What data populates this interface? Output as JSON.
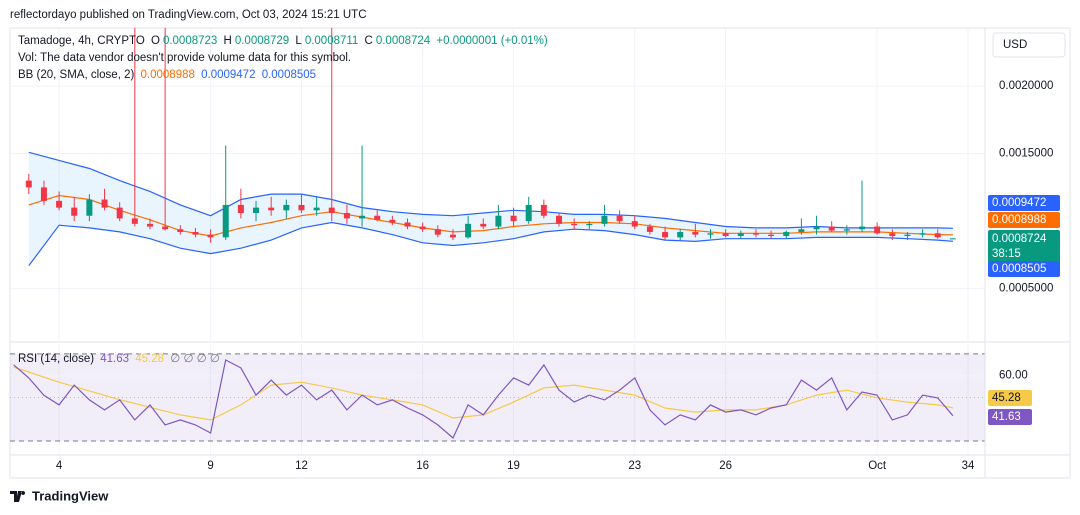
{
  "header": {
    "attribution": "reflectordayo published on TradingView.com, Oct 03, 2024 15:21 UTC",
    "brand": "TradingView"
  },
  "chart_data": [
    {
      "type": "candlestick",
      "symbol": "Tamadoge, 4h, CRYPTO",
      "ohlc_labels": [
        "O",
        "H",
        "L",
        "C"
      ],
      "change": "+0.0000001 (+0.01%)",
      "volume_note": "Vol: The data vendor doesn't provide volume data for this symbol.",
      "currency": "USD",
      "countdown": "38:15",
      "up_color": "#089981",
      "down_color": "#f23645",
      "grid": true,
      "xlim": [
        2.38,
        34.56
      ],
      "ylim": [
        0.00012,
        0.00243
      ],
      "xticks": [
        4,
        9,
        12,
        16,
        19,
        23,
        26,
        {
          "value": 31,
          "label": "Oct"
        },
        34
      ],
      "yticks": [
        {
          "value": 0.0005,
          "label": "0.0005000"
        },
        {
          "value": 0.0015,
          "label": "0.0015000"
        },
        {
          "value": 0.002,
          "label": "0.0020000"
        }
      ],
      "x": [
        3,
        3.5,
        4,
        4.5,
        5,
        5.5,
        6,
        6.5,
        7,
        7.5,
        8,
        8.5,
        9,
        9.5,
        10,
        10.5,
        11,
        11.5,
        12,
        12.5,
        13,
        13.5,
        14,
        14.5,
        15,
        15.5,
        16,
        16.5,
        17,
        17.5,
        18,
        18.5,
        19,
        19.5,
        20,
        20.5,
        21,
        21.5,
        22,
        22.5,
        23,
        23.5,
        24,
        24.5,
        25,
        25.5,
        26,
        26.5,
        27,
        27.5,
        28,
        28.5,
        29,
        29.5,
        30,
        30.5,
        31,
        31.5,
        32,
        32.5,
        33,
        33.5
      ],
      "open": [
        0.0013,
        0.00125,
        0.00115,
        0.0011,
        0.00104,
        0.00116,
        0.0011,
        0.00102,
        0.00098,
        0.00096,
        0.00094,
        0.00092,
        0.0009,
        0.00088,
        0.00112,
        0.00106,
        0.0011,
        0.00108,
        0.00112,
        0.00108,
        0.0011,
        0.00106,
        0.00102,
        0.00104,
        0.00101,
        0.00099,
        0.00096,
        0.00094,
        0.0009,
        0.00088,
        0.00098,
        0.00096,
        0.00104,
        0.001,
        0.00112,
        0.00104,
        0.00098,
        0.00097,
        0.00098,
        0.00104,
        0.001,
        0.00096,
        0.00092,
        0.00088,
        0.00092,
        0.0009,
        0.00091,
        0.00089,
        0.00091,
        0.0009,
        0.00089,
        0.00092,
        0.00094,
        0.00096,
        0.00093,
        0.00094,
        0.00096,
        0.00091,
        0.00089,
        0.0009,
        0.00091,
        0.0008723
      ],
      "high": [
        0.00135,
        0.0013,
        0.00122,
        0.00118,
        0.0012,
        0.00124,
        0.00114,
        0.00243,
        0.00102,
        0.00243,
        0.00097,
        0.00095,
        0.00094,
        0.00156,
        0.00124,
        0.00115,
        0.00118,
        0.00116,
        0.0012,
        0.00118,
        0.00243,
        0.00112,
        0.00156,
        0.00108,
        0.00104,
        0.00102,
        0.00099,
        0.00097,
        0.00094,
        0.00104,
        0.00102,
        0.00112,
        0.0011,
        0.00118,
        0.00116,
        0.00106,
        0.00102,
        0.001,
        0.00112,
        0.00108,
        0.00104,
        0.00098,
        0.00096,
        0.00094,
        0.00098,
        0.00094,
        0.00094,
        0.00093,
        0.00094,
        0.00093,
        0.00093,
        0.00102,
        0.00104,
        0.001,
        0.00097,
        0.0013,
        0.00099,
        0.00094,
        0.00092,
        0.00094,
        0.00094,
        0.0008729
      ],
      "low": [
        0.0012,
        0.00112,
        0.00108,
        0.001,
        0.001,
        0.00108,
        0.001,
        0.00096,
        0.00094,
        0.00093,
        0.0009,
        0.00088,
        0.00084,
        0.00086,
        0.00102,
        0.001,
        0.00104,
        0.00102,
        0.00106,
        0.00104,
        0.001,
        0.00098,
        0.00096,
        0.001,
        0.00097,
        0.00094,
        0.00092,
        0.00088,
        0.00086,
        0.00087,
        0.00094,
        0.00094,
        0.00096,
        0.00098,
        0.00102,
        0.00096,
        0.00094,
        0.00094,
        0.00096,
        0.00098,
        0.00094,
        0.0009,
        0.00086,
        0.00086,
        0.00088,
        0.00087,
        0.00088,
        0.00087,
        0.00088,
        0.00087,
        0.00087,
        0.0009,
        0.0009,
        0.00092,
        0.0009,
        0.00092,
        0.0009,
        0.00086,
        0.00086,
        0.00088,
        0.00087,
        0.0008711
      ],
      "close": [
        0.00125,
        0.00115,
        0.0011,
        0.00104,
        0.00116,
        0.0011,
        0.00102,
        0.00098,
        0.00096,
        0.00094,
        0.00092,
        0.0009,
        0.00088,
        0.00112,
        0.00106,
        0.0011,
        0.00108,
        0.00112,
        0.00108,
        0.0011,
        0.00106,
        0.00102,
        0.00104,
        0.00101,
        0.00099,
        0.00096,
        0.00094,
        0.0009,
        0.00088,
        0.00098,
        0.00096,
        0.00104,
        0.001,
        0.00112,
        0.00104,
        0.00098,
        0.00097,
        0.00098,
        0.00104,
        0.001,
        0.00096,
        0.00092,
        0.00088,
        0.00092,
        0.0009,
        0.00091,
        0.00089,
        0.00091,
        0.0009,
        0.00089,
        0.00092,
        0.00094,
        0.00096,
        0.00093,
        0.00094,
        0.00096,
        0.00091,
        0.00089,
        0.0009,
        0.00091,
        0.00088,
        0.0008724
      ],
      "bb": {
        "name": "BB (20, SMA, close, 2)",
        "band_color": "#2962ff",
        "basis_color": "#ff6d00",
        "fill": "rgba(33,150,243,0.1)",
        "x": [
          3,
          4,
          5,
          6,
          7,
          8,
          9,
          10,
          11,
          12,
          13,
          14,
          15,
          16,
          17,
          18,
          19,
          20,
          21,
          22,
          23,
          24,
          25,
          26,
          27,
          28,
          29,
          30,
          31,
          32,
          33,
          33.5
        ],
        "upper": [
          0.00151,
          0.00145,
          0.00139,
          0.0013,
          0.00122,
          0.00112,
          0.00104,
          0.00116,
          0.0012,
          0.0012,
          0.00116,
          0.0011,
          0.00107,
          0.00105,
          0.00104,
          0.00106,
          0.00108,
          0.00107,
          0.00105,
          0.00105,
          0.00104,
          0.00102,
          0.00099,
          0.00096,
          0.00095,
          0.00095,
          0.00096,
          0.00095,
          0.00095,
          0.00095,
          0.00095,
          0.0009472
        ],
        "basis": [
          0.00112,
          0.00119,
          0.00116,
          0.00108,
          0.00101,
          0.00093,
          0.00089,
          0.00095,
          0.00099,
          0.00104,
          0.00107,
          0.00103,
          0.00099,
          0.00095,
          0.00092,
          0.00093,
          0.00096,
          0.00098,
          0.00099,
          0.00099,
          0.00098,
          0.00095,
          0.00093,
          0.00091,
          0.00091,
          0.00091,
          0.00092,
          0.00092,
          0.00092,
          0.00091,
          0.0009,
          0.0008988
        ],
        "lower": [
          0.00067,
          0.00097,
          0.00095,
          0.00092,
          0.00087,
          0.0008,
          0.00076,
          0.0008,
          0.00086,
          0.00095,
          0.00099,
          0.00095,
          0.0009,
          0.00084,
          0.00082,
          0.00084,
          0.00087,
          0.00092,
          0.00094,
          0.00093,
          0.0009,
          0.00086,
          0.00085,
          0.00087,
          0.00087,
          0.00087,
          0.00088,
          0.00088,
          0.00088,
          0.00087,
          0.00086,
          0.0008505
        ]
      }
    },
    {
      "type": "line",
      "title": "RSI (14, close)",
      "na_markers": "∅ ∅ ∅ ∅",
      "xlim": [
        2.38,
        34.56
      ],
      "ylim": [
        23.6,
        74.1
      ],
      "yticks": [
        {
          "value": 60,
          "label": "60.00"
        }
      ],
      "band": [
        30,
        70
      ],
      "midline": 50,
      "band_fill": "rgba(126,87,194,0.1)",
      "series": [
        {
          "color": "#7e57c2",
          "x": [
            2.5,
            3,
            3.5,
            4,
            4.5,
            5,
            5.5,
            6,
            6.5,
            7,
            7.5,
            8,
            8.5,
            9,
            9.5,
            10,
            10.5,
            11,
            11.5,
            12,
            12.5,
            13,
            13.5,
            14,
            14.5,
            15,
            15.5,
            16,
            16.5,
            17,
            17.5,
            18,
            18.5,
            19,
            19.5,
            20,
            20.5,
            21,
            21.5,
            22,
            22.5,
            23,
            23.5,
            24,
            24.5,
            25,
            25.5,
            26,
            26.5,
            27,
            27.5,
            28,
            28.5,
            29,
            29.5,
            30,
            30.5,
            31,
            31.5,
            32,
            32.5,
            33,
            33.5
          ],
          "values": [
            65,
            59,
            51,
            46.6,
            55.7,
            48.9,
            44.3,
            48.9,
            39.7,
            46.6,
            37.4,
            39.7,
            37.4,
            33.7,
            67.2,
            63.6,
            51.1,
            58,
            51.1,
            55.7,
            48.9,
            53.4,
            44.3,
            51.1,
            46.6,
            48.9,
            45.2,
            42,
            37.4,
            31.4,
            46.6,
            42,
            51.1,
            59,
            55.7,
            64.9,
            53.4,
            47.9,
            51.1,
            48.9,
            53.4,
            59,
            44.3,
            37.4,
            42,
            39.7,
            46.6,
            43.3,
            44.3,
            42,
            45.2,
            46.6,
            58,
            53.4,
            59,
            44.3,
            52.5,
            51.1,
            39.7,
            42,
            51.1,
            49.8,
            41.63
          ]
        },
        {
          "color": "#f7c948",
          "x": [
            2.5,
            4,
            6,
            8,
            9,
            10,
            11,
            12,
            13,
            14,
            15,
            16,
            17,
            18,
            19,
            20,
            21,
            22,
            23,
            24,
            25,
            26,
            27,
            28,
            29,
            30,
            31,
            32,
            33,
            33.5
          ],
          "values": [
            64,
            57,
            49,
            42,
            39.7,
            46.6,
            55.7,
            57,
            54.4,
            51.1,
            48.9,
            46.6,
            40.6,
            42,
            47.9,
            54.4,
            55.7,
            53.4,
            51.1,
            45.2,
            43.3,
            44.3,
            44.3,
            46.6,
            51.1,
            53.4,
            49.8,
            47.9,
            46.6,
            45.28
          ]
        }
      ]
    }
  ]
}
